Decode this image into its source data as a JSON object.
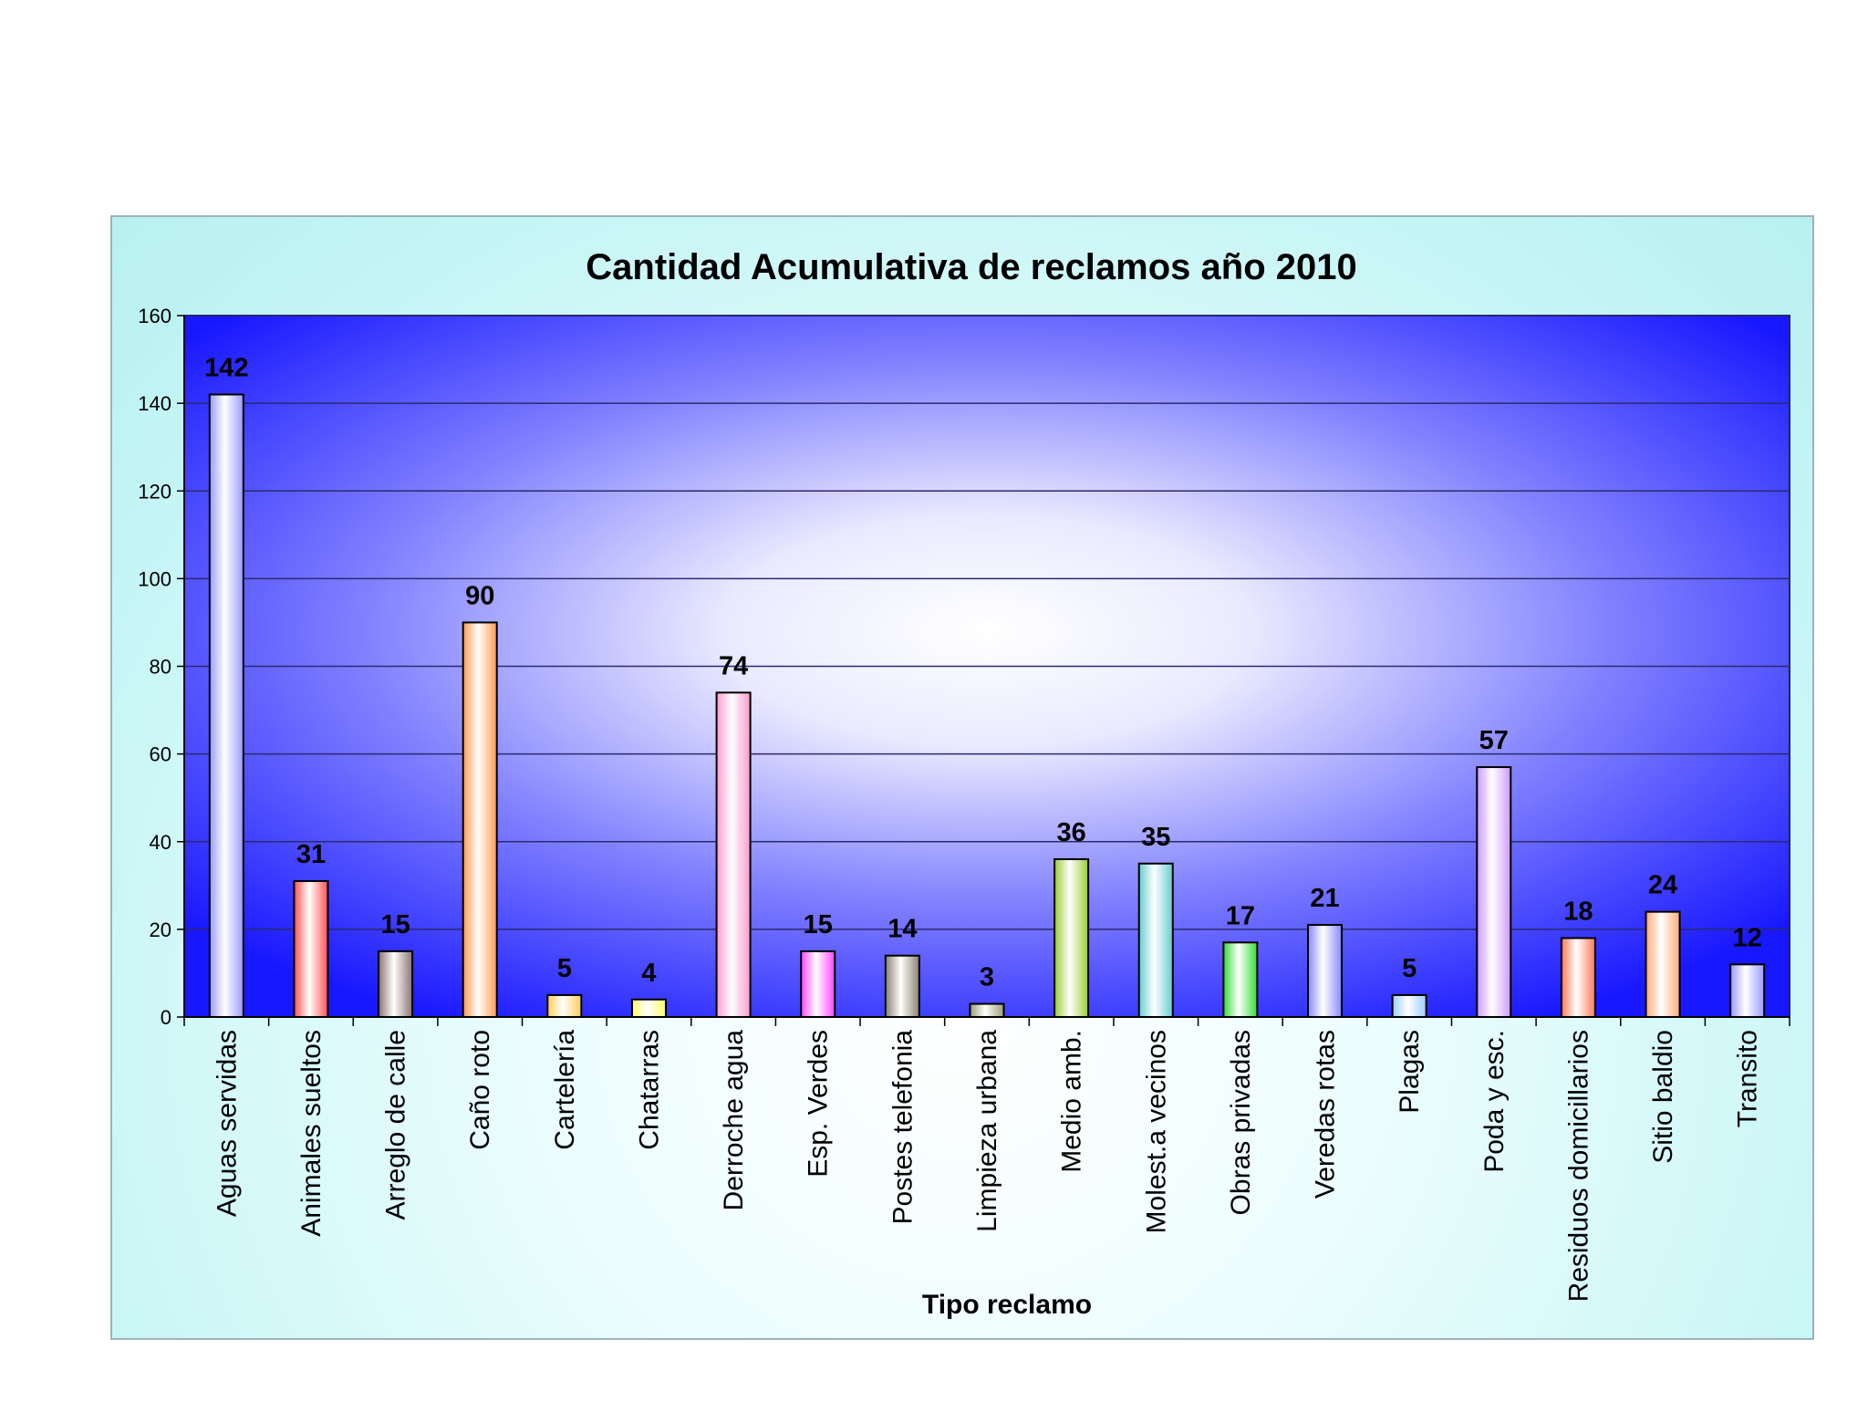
{
  "chart_data": {
    "type": "bar",
    "title": "Cantidad Acumulativa de reclamos año 2010",
    "xlabel": "Tipo reclamo",
    "ylabel": "",
    "ylim": [
      0,
      160
    ],
    "yticks": [
      0,
      20,
      40,
      60,
      80,
      100,
      120,
      140,
      160
    ],
    "grid": true,
    "legend": "none",
    "categories": [
      "Aguas servidas",
      "Animales sueltos",
      "Arreglo de calle",
      "Caño roto",
      "Cartelería",
      "Chatarras",
      "Derroche agua",
      "Esp. Verdes",
      "Postes telefonia",
      "Limpieza urbana",
      "Medio amb.",
      "Molest.a vecinos",
      "Obras privadas",
      "Veredas rotas",
      "Plagas",
      "Poda y esc.",
      "Residuos domicillarios",
      "Sitio baldio",
      "Transito"
    ],
    "values": [
      142,
      31,
      15,
      90,
      5,
      4,
      74,
      15,
      14,
      3,
      36,
      35,
      17,
      21,
      5,
      57,
      18,
      24,
      12
    ],
    "data_labels": [
      "142",
      "31",
      "15",
      "90",
      "5",
      "4",
      "74",
      "15",
      "14",
      "3",
      "36",
      "35",
      "17",
      "21",
      "5",
      "57",
      "18",
      "24",
      "12"
    ],
    "bar_colors": [
      "#9999ff",
      "#ff5050",
      "#8c7373",
      "#ff9a4d",
      "#ffcc55",
      "#ffff66",
      "#ff99cc",
      "#ff44ff",
      "#8b8270",
      "#9c9c78",
      "#99cc33",
      "#66cccc",
      "#33dd33",
      "#8888ff",
      "#99ccff",
      "#cc99ff",
      "#ff7755",
      "#ffaa77",
      "#9999ff"
    ],
    "plot_colors": {
      "background_edge": "#1818ff",
      "background_center": "#ffffff",
      "panel": "#c5f5f5",
      "gridline": "#2a2a70"
    }
  }
}
